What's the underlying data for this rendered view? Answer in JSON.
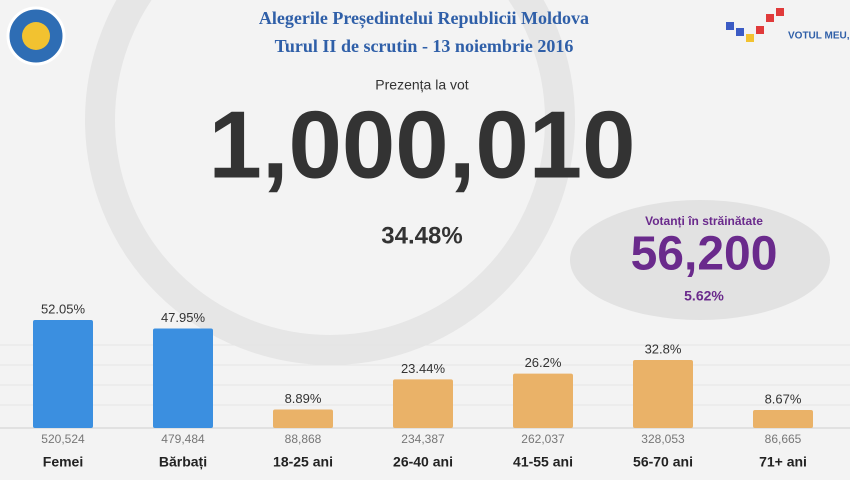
{
  "header": {
    "title": "Alegerile Președintelui Republicii Moldova",
    "subtitle": "Turul II de scrutin - 13 noiembrie 2016",
    "logo_text": "VOTUL MEU, VOCEA MEA!"
  },
  "turnout": {
    "label": "Prezența la vot",
    "count": "1,000,010",
    "percent": "34.48%"
  },
  "abroad": {
    "label": "Votanți în străinătate",
    "count": "56,200",
    "percent": "5.62%"
  },
  "chart_data": {
    "type": "bar",
    "categories": [
      "Femei",
      "Bărbați",
      "18-25 ani",
      "26-40 ani",
      "41-55 ani",
      "56-70 ani",
      "71+ ani"
    ],
    "values": [
      52.05,
      47.95,
      8.89,
      23.44,
      26.2,
      32.8,
      8.67
    ],
    "value_labels": [
      "52.05%",
      "47.95%",
      "8.89%",
      "23.44%",
      "26.2%",
      "32.8%",
      "8.67%"
    ],
    "counts": [
      "520,524",
      "479,484",
      "88,868",
      "234,387",
      "262,037",
      "328,053",
      "86,665"
    ],
    "colors": [
      "#3b8fe0",
      "#3b8fe0",
      "#eab268",
      "#eab268",
      "#eab268",
      "#eab268",
      "#eab268"
    ]
  }
}
